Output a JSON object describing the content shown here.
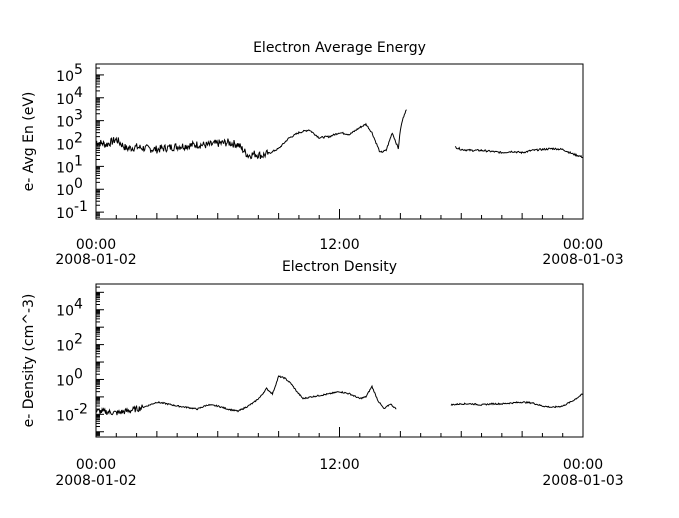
{
  "chart_data": [
    {
      "type": "line",
      "title": "Electron Average Energy",
      "ylabel": "e- Avg En (eV)",
      "yscale": "log",
      "ylim": [
        0.05,
        300000
      ],
      "xlim_hours": [
        0,
        24
      ],
      "x_ticks": [
        {
          "hour": 0,
          "time": "00:00",
          "date": "2008-01-02"
        },
        {
          "hour": 12,
          "time": "12:00",
          "date": ""
        },
        {
          "hour": 24,
          "time": "00:00",
          "date": "2008-01-03"
        }
      ],
      "y_ticks": [
        {
          "value": 0.1,
          "base": "10",
          "exp": "-1"
        },
        {
          "value": 1,
          "base": "10",
          "exp": "0"
        },
        {
          "value": 10,
          "base": "10",
          "exp": "1"
        },
        {
          "value": 100,
          "base": "10",
          "exp": "2"
        },
        {
          "value": 1000,
          "base": "10",
          "exp": "3"
        },
        {
          "value": 10000,
          "base": "10",
          "exp": "4"
        },
        {
          "value": 100000,
          "base": "10",
          "exp": "5"
        }
      ],
      "noisy_hours_before": 8.5,
      "segments": [
        {
          "x": [
            0,
            0.5,
            1,
            1.5,
            2,
            2.5,
            3,
            3.5,
            4,
            4.5,
            5,
            5.5,
            6,
            6.5,
            7,
            7.5,
            7.8,
            8.2,
            8.6,
            9,
            9.5,
            10,
            10.5,
            11,
            11.5,
            12,
            12.5,
            13,
            13.3,
            13.6,
            14,
            14.3,
            14.6,
            14.9,
            15.0,
            15.1,
            15.2,
            15.3
          ],
          "y": [
            120,
            90,
            150,
            60,
            70,
            60,
            55,
            65,
            75,
            80,
            90,
            85,
            100,
            110,
            90,
            30,
            35,
            30,
            40,
            60,
            170,
            300,
            400,
            180,
            200,
            300,
            250,
            500,
            700,
            300,
            40,
            50,
            300,
            60,
            400,
            1000,
            2000,
            3000
          ]
        },
        {
          "x": [
            17.7,
            18,
            18.5,
            19,
            19.5,
            20,
            20.5,
            21,
            21.5,
            22,
            22.5,
            23,
            23.5,
            24
          ],
          "y": [
            70,
            55,
            50,
            50,
            45,
            40,
            45,
            40,
            50,
            55,
            60,
            55,
            35,
            25
          ]
        }
      ]
    },
    {
      "type": "line",
      "title": "Electron Density",
      "ylabel": "e- Density (cm^-3)",
      "yscale": "log",
      "ylim": [
        0.0005,
        300000
      ],
      "xlim_hours": [
        0,
        24
      ],
      "x_ticks": [
        {
          "hour": 0,
          "time": "00:00",
          "date": "2008-01-02"
        },
        {
          "hour": 12,
          "time": "12:00",
          "date": ""
        },
        {
          "hour": 24,
          "time": "00:00",
          "date": "2008-01-03"
        }
      ],
      "y_ticks": [
        {
          "value": 0.01,
          "base": "10",
          "exp": "-2"
        },
        {
          "value": 1,
          "base": "10",
          "exp": "0"
        },
        {
          "value": 100,
          "base": "10",
          "exp": "2"
        },
        {
          "value": 10000,
          "base": "10",
          "exp": "4"
        }
      ],
      "noisy_hours_before": 2.3,
      "segments": [
        {
          "x": [
            0,
            0.5,
            1,
            1.5,
            2,
            2.5,
            3,
            3.5,
            4,
            4.5,
            5,
            5.5,
            6,
            6.5,
            7,
            7.5,
            7.8,
            8.1,
            8.4,
            8.7,
            9,
            9.3,
            9.6,
            9.9,
            10.2,
            10.6,
            11,
            11.5,
            12,
            12.5,
            13,
            13.3,
            13.6,
            13.9,
            14.2,
            14.5,
            14.8
          ],
          "y": [
            0.015,
            0.014,
            0.012,
            0.015,
            0.02,
            0.03,
            0.05,
            0.04,
            0.03,
            0.025,
            0.02,
            0.035,
            0.03,
            0.02,
            0.015,
            0.03,
            0.05,
            0.1,
            0.3,
            0.15,
            1.5,
            1.2,
            0.6,
            0.2,
            0.08,
            0.1,
            0.12,
            0.15,
            0.2,
            0.15,
            0.08,
            0.1,
            0.4,
            0.06,
            0.02,
            0.04,
            0.02
          ]
        },
        {
          "x": [
            17.5,
            18,
            18.5,
            19,
            19.5,
            20,
            20.5,
            21,
            21.5,
            22,
            22.5,
            23,
            23.5,
            24
          ],
          "y": [
            0.035,
            0.04,
            0.04,
            0.035,
            0.04,
            0.04,
            0.045,
            0.05,
            0.045,
            0.03,
            0.025,
            0.03,
            0.06,
            0.15
          ]
        }
      ]
    }
  ]
}
